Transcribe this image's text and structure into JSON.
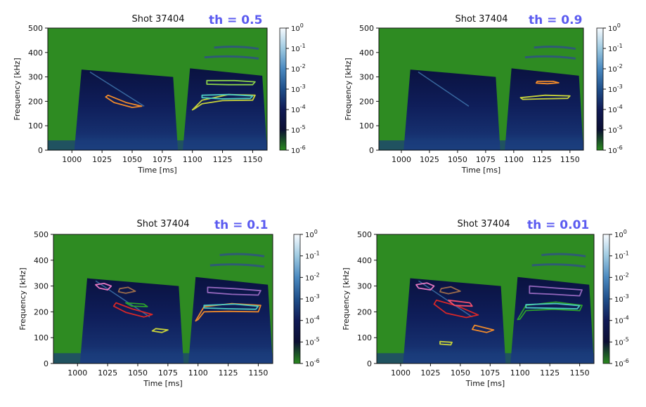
{
  "chart_data": [
    {
      "type": "heatmap",
      "title": "Shot 37404",
      "threshold_label": "th = 0.5",
      "xlabel": "Time [ms]",
      "ylabel": "Frequency [kHz]",
      "xlim": [
        980,
        1162
      ],
      "ylim": [
        0,
        500
      ],
      "xticks": [
        1000,
        1025,
        1050,
        1075,
        1100,
        1125,
        1150
      ],
      "yticks": [
        0,
        100,
        200,
        300,
        400,
        500
      ],
      "colorbar": {
        "ticks": [
          "10^0",
          "10^-1",
          "10^-2",
          "10^-3",
          "10^-4",
          "10^-5",
          "10^-6"
        ],
        "colors": [
          "#f7fbff",
          "#9ecae1",
          "#4a89c0",
          "#1f4f8a",
          "#101a55",
          "#0b0f33",
          "#2a8a1f"
        ]
      },
      "contours": [
        {
          "color": "#f08a2b",
          "points": [
            [
              1030,
              225
            ],
            [
              1045,
              195
            ],
            [
              1058,
              180
            ],
            [
              1050,
              175
            ],
            [
              1035,
              195
            ],
            [
              1028,
              218
            ]
          ]
        },
        {
          "color": "#c7d13a",
          "points": [
            [
              1100,
              165
            ],
            [
              1108,
              205
            ],
            [
              1130,
              228
            ],
            [
              1152,
              225
            ],
            [
              1150,
              205
            ],
            [
              1125,
              203
            ],
            [
              1108,
              190
            ],
            [
              1102,
              170
            ]
          ]
        },
        {
          "color": "#4cc9c0",
          "points": [
            [
              1108,
              225
            ],
            [
              1130,
              228
            ],
            [
              1150,
              222
            ],
            [
              1148,
              212
            ],
            [
              1125,
              210
            ],
            [
              1108,
              215
            ]
          ]
        },
        {
          "color": "#8bd24a",
          "points": [
            [
              1112,
              285
            ],
            [
              1135,
              285
            ],
            [
              1152,
              280
            ],
            [
              1150,
              268
            ],
            [
              1130,
              268
            ],
            [
              1112,
              270
            ]
          ]
        }
      ]
    },
    {
      "type": "heatmap",
      "title": "Shot 37404",
      "threshold_label": "th = 0.9",
      "xlabel": "Time [ms]",
      "ylabel": "Frequency [kHz]",
      "xlim": [
        980,
        1162
      ],
      "ylim": [
        0,
        500
      ],
      "xticks": [
        1000,
        1025,
        1050,
        1075,
        1100,
        1125,
        1150
      ],
      "yticks": [
        0,
        100,
        200,
        300,
        400,
        500
      ],
      "colorbar": {
        "ticks": [
          "10^0",
          "10^-1",
          "10^-2",
          "10^-3",
          "10^-4",
          "10^-5",
          "10^-6"
        ],
        "colors": [
          "#f7fbff",
          "#9ecae1",
          "#4a89c0",
          "#1f4f8a",
          "#101a55",
          "#0b0f33",
          "#2a8a1f"
        ]
      },
      "contours": [
        {
          "color": "#f08a2b",
          "points": [
            [
              1121,
              282
            ],
            [
              1135,
              282
            ],
            [
              1140,
              276
            ],
            [
              1130,
              272
            ],
            [
              1120,
              275
            ]
          ]
        },
        {
          "color": "#c7d13a",
          "points": [
            [
              1106,
              215
            ],
            [
              1128,
              225
            ],
            [
              1150,
              222
            ],
            [
              1148,
              212
            ],
            [
              1125,
              210
            ],
            [
              1108,
              208
            ]
          ]
        }
      ]
    },
    {
      "type": "heatmap",
      "title": "Shot 37404",
      "threshold_label": "th = 0.1",
      "xlabel": "Time [ms]",
      "ylabel": "Frequency [kHz]",
      "xlim": [
        980,
        1162
      ],
      "ylim": [
        0,
        500
      ],
      "xticks": [
        1000,
        1025,
        1050,
        1075,
        1100,
        1125,
        1150
      ],
      "yticks": [
        0,
        100,
        200,
        300,
        400,
        500
      ],
      "colorbar": {
        "ticks": [
          "10^0",
          "10^-1",
          "10^-2",
          "10^-3",
          "10^-4",
          "10^-5",
          "10^-6"
        ],
        "colors": [
          "#f7fbff",
          "#9ecae1",
          "#4a89c0",
          "#1f4f8a",
          "#101a55",
          "#0b0f33",
          "#2a8a1f"
        ]
      },
      "contours": [
        {
          "color": "#e377c2",
          "points": [
            [
              1015,
              305
            ],
            [
              1022,
              310
            ],
            [
              1028,
              300
            ],
            [
              1025,
              285
            ],
            [
              1018,
              292
            ]
          ]
        },
        {
          "color": "#9a6b4a",
          "points": [
            [
              1035,
              290
            ],
            [
              1042,
              295
            ],
            [
              1048,
              280
            ],
            [
              1040,
              272
            ],
            [
              1034,
              278
            ]
          ]
        },
        {
          "color": "#d62728",
          "points": [
            [
              1032,
              235
            ],
            [
              1045,
              212
            ],
            [
              1062,
              190
            ],
            [
              1055,
              180
            ],
            [
              1040,
              198
            ],
            [
              1030,
              222
            ]
          ]
        },
        {
          "color": "#2ca02c",
          "points": [
            [
              1040,
              235
            ],
            [
              1055,
              230
            ],
            [
              1058,
              220
            ],
            [
              1045,
              222
            ]
          ]
        },
        {
          "color": "#c7d13a",
          "points": [
            [
              1065,
              135
            ],
            [
              1075,
              130
            ],
            [
              1070,
              120
            ],
            [
              1062,
              126
            ]
          ]
        },
        {
          "color": "#9467bd",
          "points": [
            [
              1108,
              295
            ],
            [
              1130,
              290
            ],
            [
              1152,
              282
            ],
            [
              1150,
              265
            ],
            [
              1128,
              268
            ],
            [
              1108,
              275
            ]
          ]
        },
        {
          "color": "#f08a2b",
          "points": [
            [
              1098,
              165
            ],
            [
              1105,
              220
            ],
            [
              1128,
              232
            ],
            [
              1152,
              225
            ],
            [
              1150,
              200
            ],
            [
              1125,
              202
            ],
            [
              1105,
              200
            ],
            [
              1100,
              170
            ]
          ]
        },
        {
          "color": "#4cc9c0",
          "points": [
            [
              1105,
              225
            ],
            [
              1130,
              230
            ],
            [
              1150,
              222
            ],
            [
              1148,
              210
            ],
            [
              1125,
              212
            ],
            [
              1105,
              215
            ]
          ]
        }
      ]
    },
    {
      "type": "heatmap",
      "title": "Shot 37404",
      "threshold_label": "th = 0.01",
      "xlabel": "Time [ms]",
      "ylabel": "Frequency [kHz]",
      "xlim": [
        980,
        1162
      ],
      "ylim": [
        0,
        500
      ],
      "xticks": [
        1000,
        1025,
        1050,
        1075,
        1100,
        1125,
        1150
      ],
      "yticks": [
        0,
        100,
        200,
        300,
        400,
        500
      ],
      "colorbar": {
        "ticks": [
          "10^0",
          "10^-1",
          "10^-2",
          "10^-3",
          "10^-4",
          "10^-5",
          "10^-6"
        ],
        "colors": [
          "#f7fbff",
          "#9ecae1",
          "#4a89c0",
          "#1f4f8a",
          "#101a55",
          "#0b0f33",
          "#2a8a1f"
        ]
      },
      "contours": [
        {
          "color": "#e377c2",
          "points": [
            [
              1013,
              305
            ],
            [
              1022,
              312
            ],
            [
              1028,
              300
            ],
            [
              1025,
              285
            ],
            [
              1015,
              292
            ]
          ]
        },
        {
          "color": "#9a6b4a",
          "points": [
            [
              1034,
              290
            ],
            [
              1042,
              297
            ],
            [
              1050,
              280
            ],
            [
              1040,
              270
            ],
            [
              1033,
              278
            ]
          ]
        },
        {
          "color": "#d62728",
          "points": [
            [
              1030,
              245
            ],
            [
              1048,
              222
            ],
            [
              1065,
              188
            ],
            [
              1055,
              178
            ],
            [
              1038,
              195
            ],
            [
              1028,
              230
            ]
          ]
        },
        {
          "color": "#f0506e",
          "points": [
            [
              1040,
              245
            ],
            [
              1058,
              235
            ],
            [
              1060,
              222
            ],
            [
              1045,
              225
            ]
          ]
        },
        {
          "color": "#f08a2b",
          "points": [
            [
              1062,
              148
            ],
            [
              1078,
              130
            ],
            [
              1072,
              120
            ],
            [
              1060,
              132
            ]
          ]
        },
        {
          "color": "#c7d13a",
          "points": [
            [
              1033,
              85
            ],
            [
              1043,
              82
            ],
            [
              1042,
              72
            ],
            [
              1033,
              75
            ]
          ]
        },
        {
          "color": "#9467bd",
          "points": [
            [
              1108,
              300
            ],
            [
              1130,
              292
            ],
            [
              1152,
              285
            ],
            [
              1150,
              262
            ],
            [
              1128,
              268
            ],
            [
              1108,
              272
            ]
          ]
        },
        {
          "color": "#2ca02c",
          "points": [
            [
              1098,
              170
            ],
            [
              1105,
              225
            ],
            [
              1130,
              238
            ],
            [
              1152,
              225
            ],
            [
              1150,
              205
            ],
            [
              1128,
              210
            ],
            [
              1105,
              205
            ],
            [
              1100,
              172
            ]
          ]
        },
        {
          "color": "#4cc9c0",
          "points": [
            [
              1105,
              228
            ],
            [
              1130,
              232
            ],
            [
              1150,
              224
            ],
            [
              1148,
              212
            ],
            [
              1125,
              214
            ],
            [
              1105,
              216
            ]
          ]
        }
      ]
    }
  ]
}
